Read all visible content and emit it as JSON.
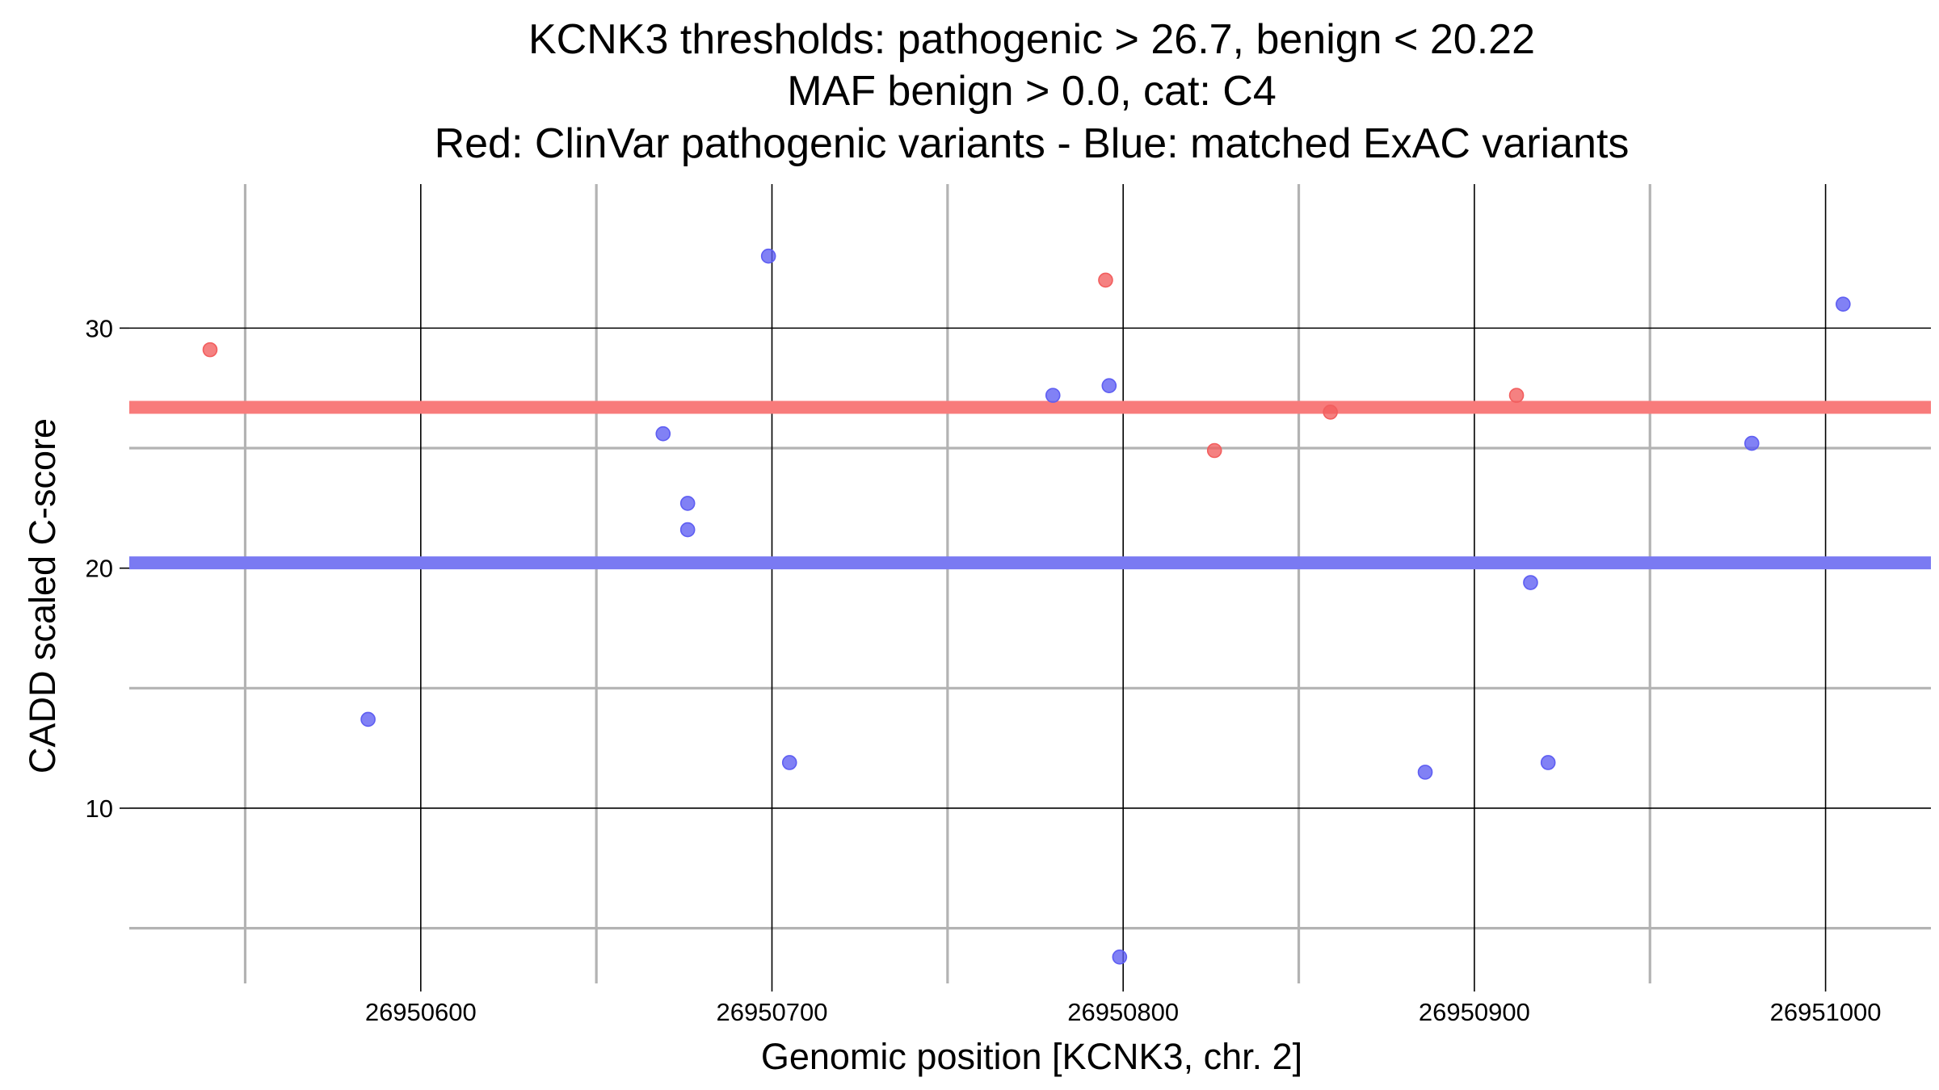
{
  "chart_data": {
    "type": "scatter",
    "title_lines": [
      "KCNK3 thresholds: pathogenic > 26.7, benign < 20.22",
      "MAF benign > 0.0, cat: C4",
      "Red: ClinVar pathogenic variants - Blue: matched ExAC variants"
    ],
    "xlabel": "Genomic position [KCNK3, chr. 2]",
    "ylabel": "CADD scaled C-score",
    "xlim": [
      26950517,
      26951030
    ],
    "ylim": [
      2.7,
      36.0
    ],
    "x_major_ticks": [
      26950600,
      26950700,
      26950800,
      26950900,
      26951000
    ],
    "x_tick_labels": [
      "26950600",
      "26950700",
      "26950800",
      "26950900",
      "26951000"
    ],
    "x_minor_ticks": [
      26950550,
      26950650,
      26950750,
      26950850,
      26950950
    ],
    "y_major_ticks": [
      10,
      20,
      30
    ],
    "y_tick_labels": [
      "10",
      "20",
      "30"
    ],
    "y_minor_ticks": [
      5,
      15,
      25
    ],
    "thresholds": [
      {
        "name": "pathogenic",
        "value": 26.7,
        "color": "#f87b7b"
      },
      {
        "name": "benign",
        "value": 20.22,
        "color": "#7a7af2"
      }
    ],
    "series": [
      {
        "color": "#f25e5e",
        "points": [
          {
            "x": 26950540,
            "y": 29.1
          },
          {
            "x": 26950795,
            "y": 32.0
          },
          {
            "x": 26950826,
            "y": 24.9
          },
          {
            "x": 26950859,
            "y": 26.5
          },
          {
            "x": 26950912,
            "y": 27.2
          }
        ]
      },
      {
        "color": "#5e5ef2",
        "points": [
          {
            "x": 26950585,
            "y": 13.7
          },
          {
            "x": 26950669,
            "y": 25.6
          },
          {
            "x": 26950676,
            "y": 22.7
          },
          {
            "x": 26950676,
            "y": 21.6
          },
          {
            "x": 26950699,
            "y": 33.0
          },
          {
            "x": 26950705,
            "y": 11.9
          },
          {
            "x": 26950780,
            "y": 27.2
          },
          {
            "x": 26950796,
            "y": 27.6
          },
          {
            "x": 26950799,
            "y": 3.8
          },
          {
            "x": 26950886,
            "y": 11.5
          },
          {
            "x": 26950916,
            "y": 19.4
          },
          {
            "x": 26950921,
            "y": 11.9
          },
          {
            "x": 26950979,
            "y": 25.2
          },
          {
            "x": 26951005,
            "y": 31.0
          }
        ]
      }
    ],
    "grid": true,
    "legend": "none"
  }
}
